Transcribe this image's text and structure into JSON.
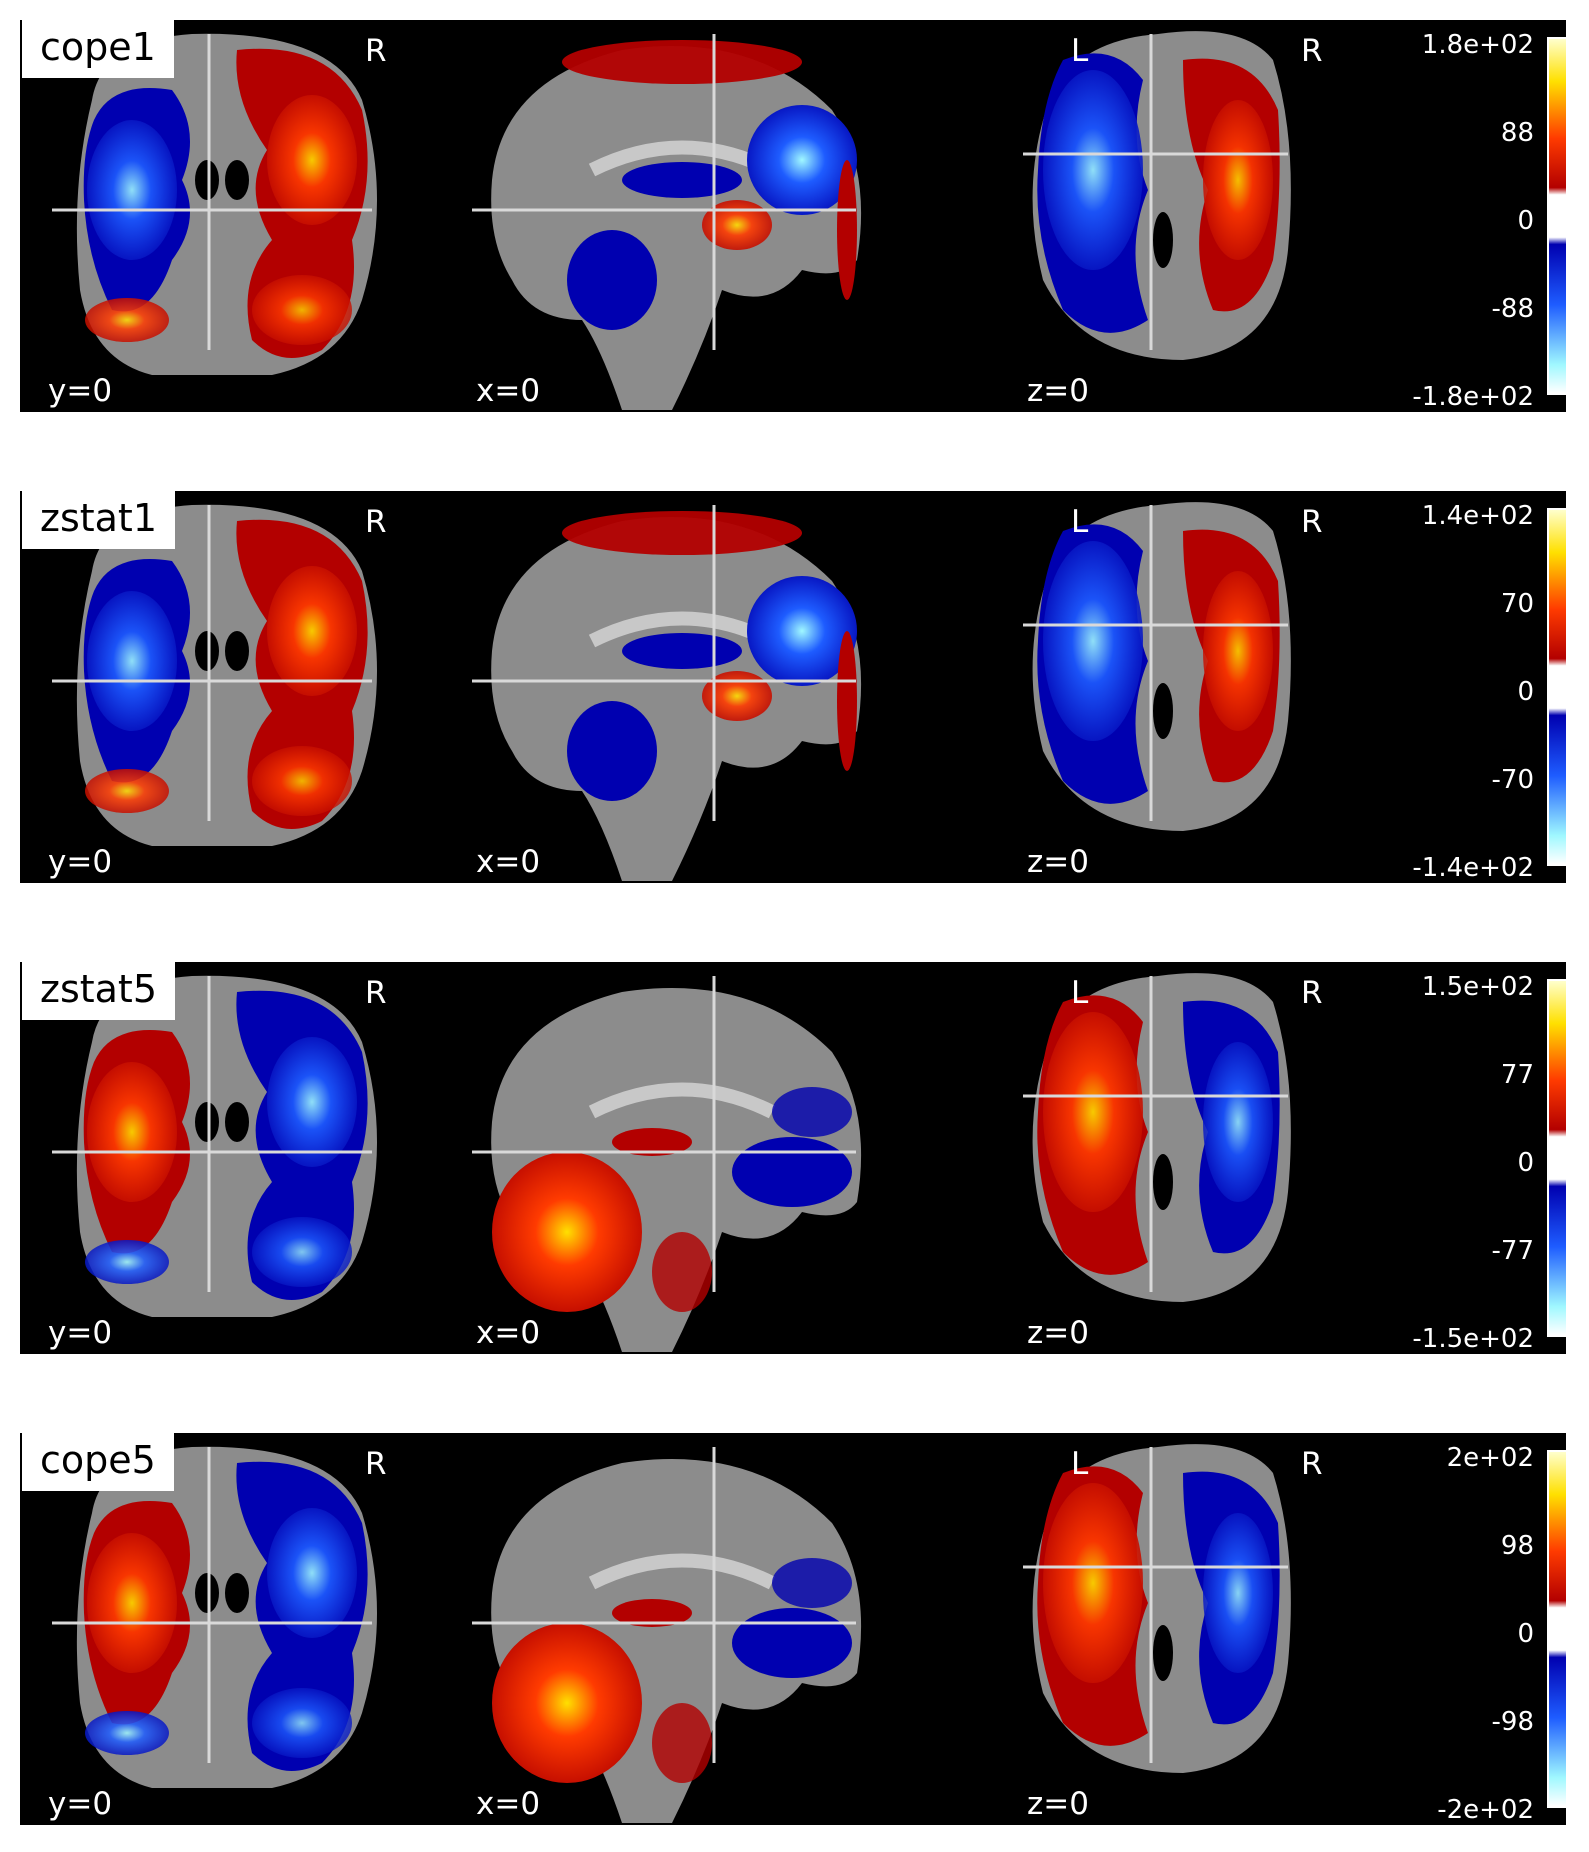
{
  "panels": [
    {
      "title": "cope1",
      "colorbar": {
        "max": "1.8e+02",
        "upper": "88",
        "zero": "0",
        "lower": "-88",
        "min": "-1.8e+02"
      },
      "cuts": {
        "coronal": "y=0",
        "sagittal": "x=0",
        "axial": "z=0"
      },
      "orientation": {
        "coronal_right": "R",
        "axial_left": "L",
        "axial_right": "R"
      },
      "pattern": "positive-right"
    },
    {
      "title": "zstat1",
      "colorbar": {
        "max": "1.4e+02",
        "upper": "70",
        "zero": "0",
        "lower": "-70",
        "min": "-1.4e+02"
      },
      "cuts": {
        "coronal": "y=0",
        "sagittal": "x=0",
        "axial": "z=0"
      },
      "orientation": {
        "coronal_right": "R",
        "axial_left": "L",
        "axial_right": "R"
      },
      "pattern": "positive-right"
    },
    {
      "title": "zstat5",
      "colorbar": {
        "max": "1.5e+02",
        "upper": "77",
        "zero": "0",
        "lower": "-77",
        "min": "-1.5e+02"
      },
      "cuts": {
        "coronal": "y=0",
        "sagittal": "x=0",
        "axial": "z=0"
      },
      "orientation": {
        "coronal_right": "R",
        "axial_left": "L",
        "axial_right": "R"
      },
      "pattern": "positive-left"
    },
    {
      "title": "cope5",
      "colorbar": {
        "max": "2e+02",
        "upper": "98",
        "zero": "0",
        "lower": "-98",
        "min": "-2e+02"
      },
      "cuts": {
        "coronal": "y=0",
        "sagittal": "x=0",
        "axial": "z=0"
      },
      "orientation": {
        "coronal_right": "R",
        "axial_left": "L",
        "axial_right": "R"
      },
      "pattern": "positive-left"
    }
  ],
  "colors": {
    "background": "#000000",
    "brain_gray": "#8c8c8c",
    "crosshair": "#d9d9d9",
    "positive_low": "#b30000",
    "positive_mid": "#ff3b00",
    "positive_high": "#ffe000",
    "negative_low": "#0000b0",
    "negative_mid": "#1e5cff",
    "negative_high": "#a0f8ff"
  }
}
